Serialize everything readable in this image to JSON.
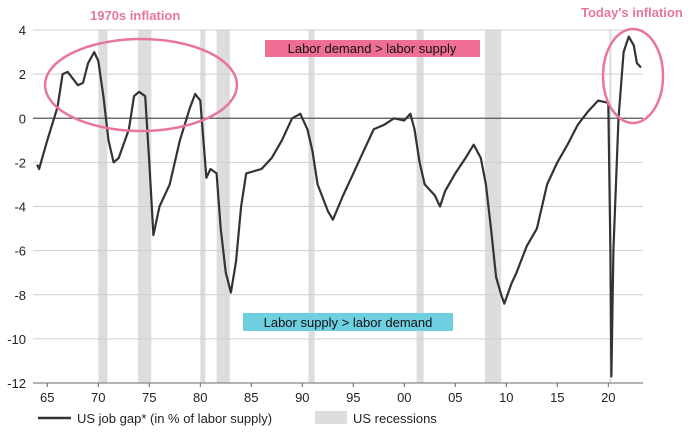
{
  "chart_data": {
    "type": "line",
    "xlim": [
      1963.6,
      2023.4
    ],
    "ylim": [
      -12,
      4
    ],
    "grid": true,
    "x_tick_labels": [
      "65",
      "70",
      "75",
      "80",
      "85",
      "90",
      "95",
      "00",
      "05",
      "10",
      "15",
      "20"
    ],
    "x_tick_values": [
      1965,
      1970,
      1975,
      1980,
      1985,
      1990,
      1995,
      2000,
      2005,
      2010,
      2015,
      2020
    ],
    "y_ticks": [
      4,
      2,
      0,
      -2,
      -4,
      -6,
      -8,
      -10,
      -12
    ],
    "legend_position": "bottom-left",
    "colors": {
      "line": "#333333",
      "recession": "#dddddd",
      "highlight_pink": "#ee6f93",
      "highlight_blue": "#6dcfe0",
      "annotation": "#e8769a"
    },
    "series": [
      {
        "name": "US job gap* (in % of labor supply)",
        "x": [
          1964.0,
          1964.2,
          1965,
          1966,
          1966.5,
          1967,
          1968,
          1968.5,
          1969,
          1969.6,
          1970,
          1970.5,
          1971,
          1971.5,
          1972,
          1973,
          1973.5,
          1974,
          1974.6,
          1975,
          1975.4,
          1976,
          1977,
          1978,
          1979,
          1979.5,
          1980,
          1980.3,
          1980.6,
          1981,
          1981.6,
          1982,
          1982.5,
          1983,
          1983.5,
          1984,
          1984.5,
          1986,
          1987,
          1988,
          1989,
          1989.8,
          1990.5,
          1991,
          1991.5,
          1992.5,
          1993,
          1994,
          1995,
          1996,
          1997,
          1998,
          1999,
          2000,
          2000.6,
          2001,
          2001.5,
          2002,
          2003,
          2003.5,
          2004,
          2005,
          2006,
          2006.8,
          2007.5,
          2008,
          2008.5,
          2009,
          2009.5,
          2009.8,
          2010.5,
          2011,
          2012,
          2013,
          2014,
          2015,
          2016,
          2017,
          2018,
          2019,
          2020.0,
          2020.2,
          2020.3,
          2020.5,
          2021,
          2021.5,
          2022,
          2022.5,
          2022.8,
          2023.2
        ],
        "y": [
          -2.1,
          -2.3,
          -1.0,
          0.5,
          2.0,
          2.1,
          1.5,
          1.6,
          2.5,
          3.0,
          2.6,
          1.0,
          -1.0,
          -2.0,
          -1.8,
          -0.5,
          1.0,
          1.2,
          1.0,
          -2.0,
          -5.3,
          -4.0,
          -3.0,
          -1.0,
          0.5,
          1.1,
          0.8,
          -1.0,
          -2.7,
          -2.3,
          -2.5,
          -5.0,
          -7.0,
          -7.9,
          -6.5,
          -4.0,
          -2.5,
          -2.3,
          -1.8,
          -1.0,
          0.0,
          0.2,
          -0.5,
          -1.5,
          -3.0,
          -4.2,
          -4.6,
          -3.5,
          -2.5,
          -1.5,
          -0.5,
          -0.3,
          0.0,
          -0.1,
          0.2,
          -0.5,
          -2.0,
          -3.0,
          -3.5,
          -4.0,
          -3.3,
          -2.5,
          -1.8,
          -1.2,
          -1.8,
          -3.0,
          -5.0,
          -7.2,
          -8.0,
          -8.4,
          -7.5,
          -7.0,
          -5.8,
          -5.0,
          -3.0,
          -2.0,
          -1.2,
          -0.3,
          0.3,
          0.8,
          0.7,
          -6.0,
          -11.7,
          -6.0,
          0.0,
          3.0,
          3.7,
          3.3,
          2.5,
          2.3
        ]
      }
    ],
    "recessions": {
      "name": "US recessions",
      "periods": [
        [
          1970.0,
          1970.9
        ],
        [
          1973.9,
          1975.2
        ],
        [
          1980.0,
          1980.5
        ],
        [
          1981.6,
          1982.9
        ],
        [
          1990.6,
          1991.2
        ],
        [
          2001.2,
          2001.9
        ],
        [
          2007.9,
          2009.5
        ],
        [
          2020.1,
          2020.3
        ]
      ]
    },
    "annotations": {
      "seventies": "1970s inflation",
      "today": "Today's inflation",
      "demand_box": "Labor demand > labor supply",
      "supply_box": "Labor supply > labor demand"
    }
  }
}
